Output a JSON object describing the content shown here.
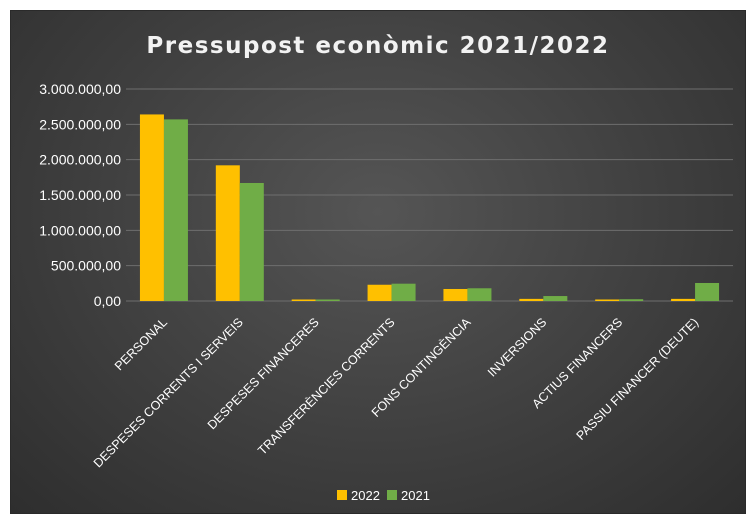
{
  "chart_data": {
    "type": "bar",
    "title": "Pressupost econòmic 2021/2022",
    "xlabel": "",
    "ylabel": "",
    "ylim": [
      0,
      3000000
    ],
    "yticks": [
      "0,00",
      "500.000,00",
      "1.000.000,00",
      "1.500.000,00",
      "2.000.000,00",
      "2.500.000,00",
      "3.000.000,00"
    ],
    "grid": true,
    "legend_position": "bottom",
    "categories": [
      "PERSONAL",
      "DESPESES CORRENTS I SERVEIS",
      "DESPESES FINANCERES",
      "TRANSFERÈNCIES CORRENTS",
      "FONS CONTINGÈNCIA",
      "INVERSIONS",
      "ACTIUS FINANCERS",
      "PASSIU FINANCER (DEUTE)"
    ],
    "series": [
      {
        "name": "2022",
        "color": "#FFC000",
        "values": [
          2640000,
          1920000,
          5000,
          230000,
          170000,
          30000,
          15000,
          30000
        ]
      },
      {
        "name": "2021",
        "color": "#70AD47",
        "values": [
          2570000,
          1670000,
          8000,
          245000,
          180000,
          70000,
          25000,
          255000
        ]
      }
    ]
  }
}
